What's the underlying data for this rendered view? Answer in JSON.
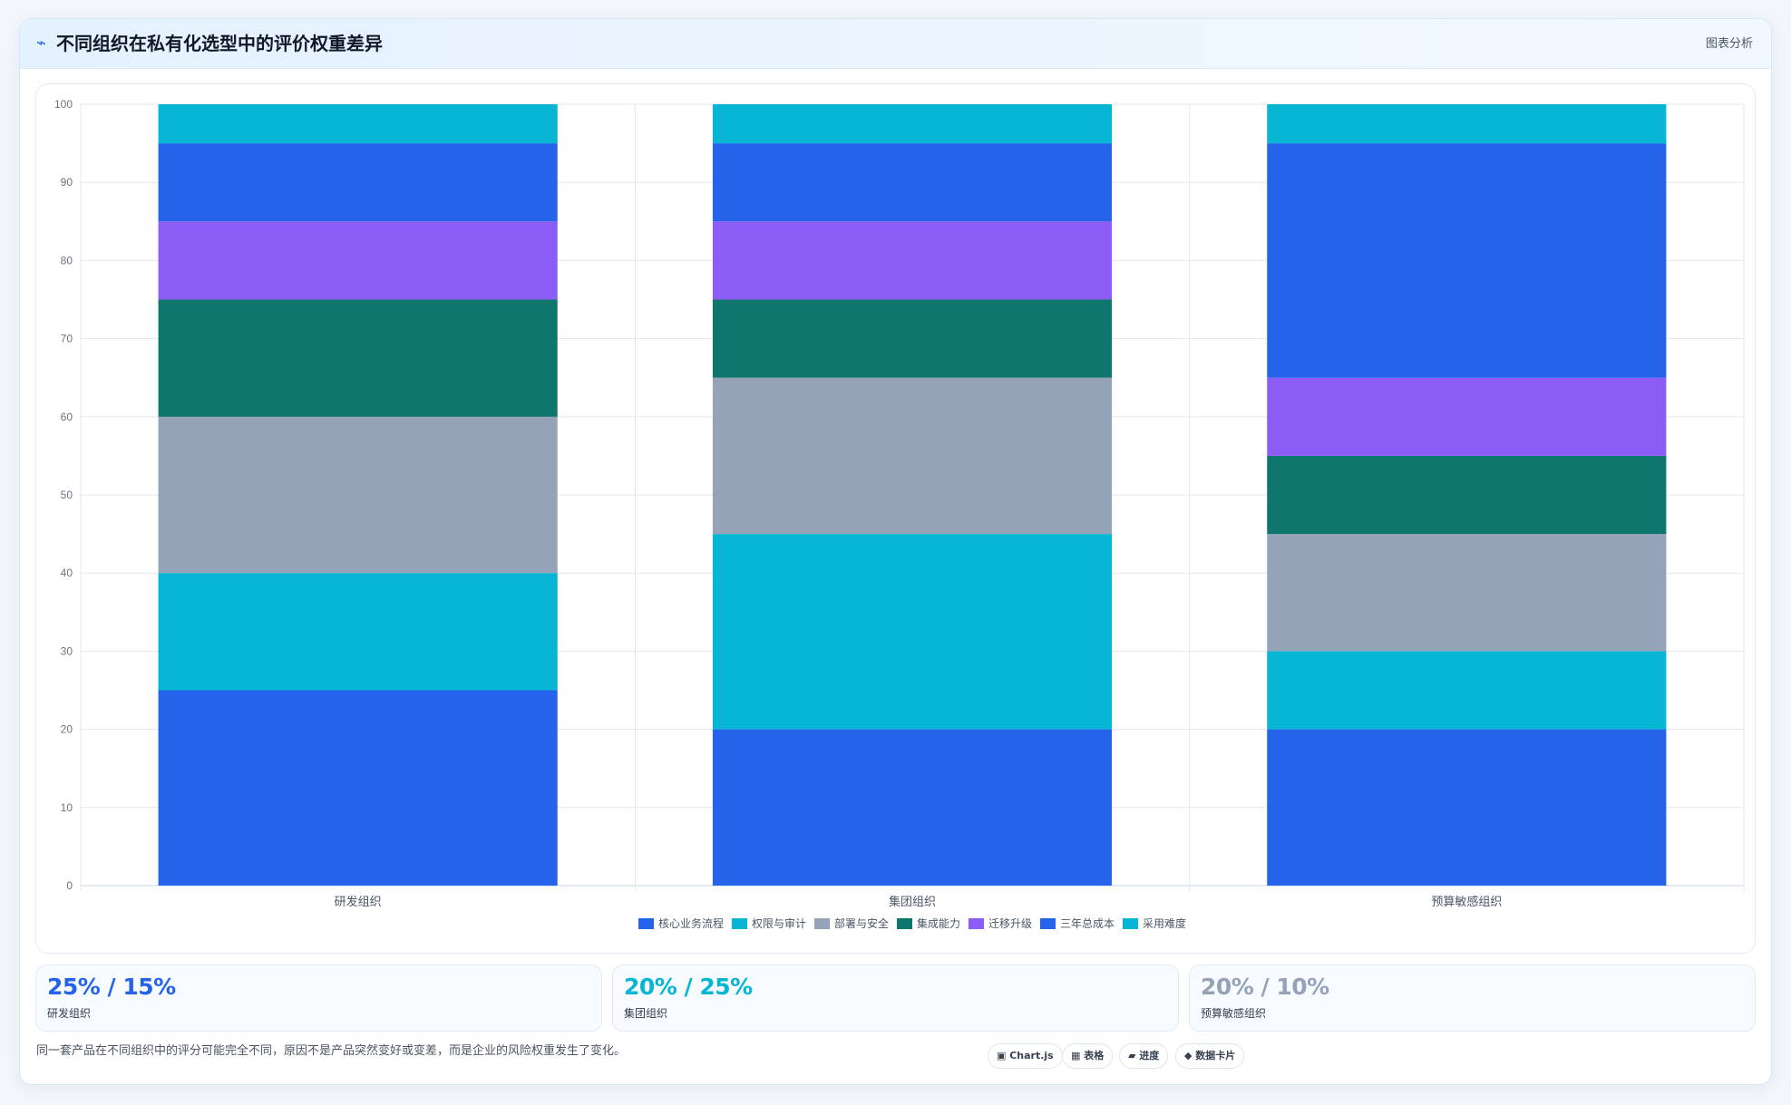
{
  "header": {
    "title_icon": "trend-icon",
    "title_glyph": "⌁",
    "title": "不同组织在私有化选型中的评价权重差异",
    "tag": "图表分析"
  },
  "chart_data": {
    "type": "bar",
    "stacked": true,
    "title": "",
    "xlabel": "",
    "ylabel": "",
    "categories": [
      "研发组织",
      "集团组织",
      "预算敏感组织"
    ],
    "ylim": [
      0,
      100
    ],
    "yticks": [
      0,
      10,
      20,
      30,
      40,
      50,
      60,
      70,
      80,
      90,
      100
    ],
    "grid": true,
    "legend": "bottom",
    "series": [
      {
        "name": "核心业务流程",
        "color": "#2563eb",
        "values": [
          25,
          20,
          20
        ]
      },
      {
        "name": "权限与审计",
        "color": "#06b6d4",
        "values": [
          15,
          25,
          10
        ]
      },
      {
        "name": "部署与安全",
        "color": "#94a3b8",
        "values": [
          20,
          20,
          15
        ]
      },
      {
        "name": "集成能力",
        "color": "#0f766e",
        "values": [
          15,
          10,
          10
        ]
      },
      {
        "name": "迁移升级",
        "color": "#8b5cf6",
        "values": [
          10,
          10,
          10
        ]
      },
      {
        "name": "三年总成本",
        "color": "#2563eb",
        "values": [
          10,
          10,
          30
        ]
      },
      {
        "name": "采用难度",
        "color": "#06b6d4",
        "values": [
          5,
          5,
          5
        ]
      }
    ]
  },
  "kpis": [
    {
      "value": "25% / 15%",
      "label": "研发组织",
      "color": "#2563eb"
    },
    {
      "value": "20% / 25%",
      "label": "集团组织",
      "color": "#06b6d4"
    },
    {
      "value": "20% / 10%",
      "label": "预算敏感组织",
      "color": "#94a3b8"
    }
  ],
  "footnote": "同一套产品在不同组织中的评分可能完全不同，原因不是产品突然变好或变差，而是企业的风险权重发生了变化。",
  "chips": [
    {
      "icon": "chart-icon",
      "label": "▣ Chart.js"
    },
    {
      "icon": "table-icon",
      "label": "▦ 表格"
    },
    {
      "icon": "progress-icon",
      "label": "▰ 进度"
    },
    {
      "icon": "card-icon",
      "label": "◆ 数据卡片"
    }
  ]
}
